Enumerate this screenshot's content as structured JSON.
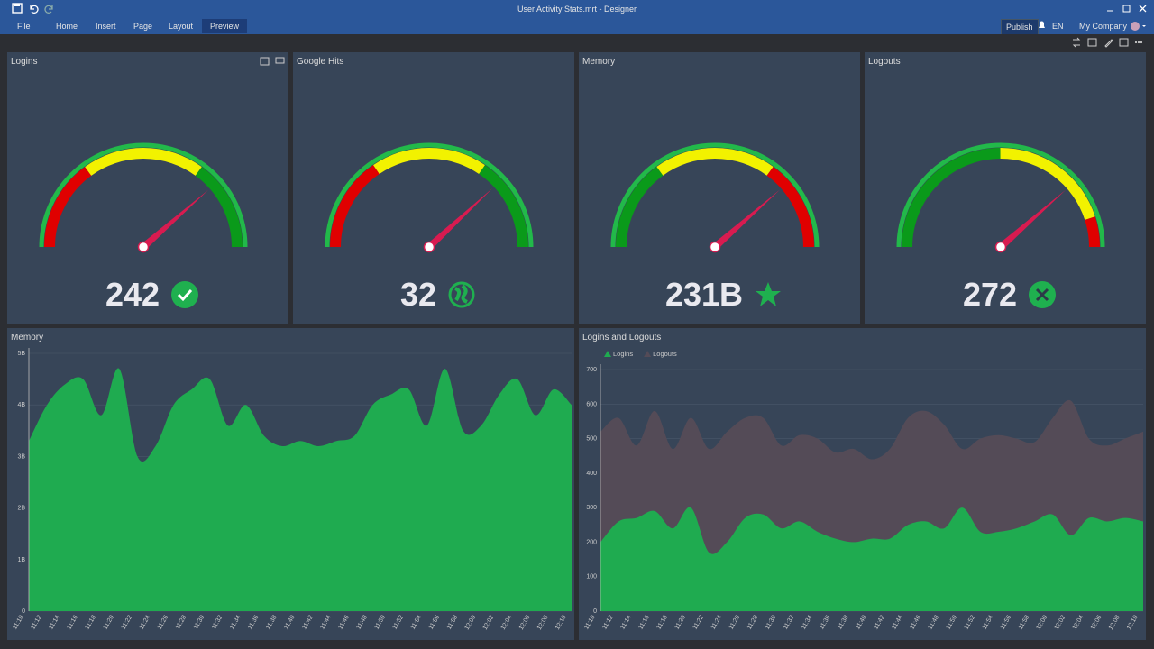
{
  "window": {
    "title": "User Activity Stats.mrt - Designer"
  },
  "menu": {
    "items": [
      "File",
      "Home",
      "Insert",
      "Page",
      "Layout",
      "Preview"
    ],
    "publish": "Publish",
    "language": "EN",
    "account": "My Company"
  },
  "gauges": [
    {
      "title": "Logins",
      "value": 242,
      "min": 0,
      "max": 314,
      "bands": [
        {
          "from": 0,
          "to": 94,
          "color": "#e00000"
        },
        {
          "from": 94,
          "to": 220,
          "color": "#f2f200"
        },
        {
          "from": 220,
          "to": 314,
          "color": "#0a9a1a"
        }
      ]
    },
    {
      "title": "Google Hits",
      "value": 32,
      "min": 0,
      "max": 42,
      "bands": [
        {
          "from": 0,
          "to": 13,
          "color": "#e00000"
        },
        {
          "from": 13,
          "to": 29,
          "color": "#f2f200"
        },
        {
          "from": 29,
          "to": 42,
          "color": "#0a9a1a"
        }
      ]
    },
    {
      "title": "Memory",
      "value": 231,
      "value_label": "231B",
      "min": 0,
      "max": 300,
      "bands": [
        {
          "from": 0,
          "to": 90,
          "color": "#0a9a1a"
        },
        {
          "from": 90,
          "to": 210,
          "color": "#f2f200"
        },
        {
          "from": 210,
          "to": 300,
          "color": "#e00000"
        }
      ]
    },
    {
      "title": "Logouts",
      "value": 272,
      "min": 0,
      "max": 353,
      "bands": [
        {
          "from": 0,
          "to": 176,
          "color": "#0a9a1a"
        },
        {
          "from": 176,
          "to": 318,
          "color": "#f2f200"
        },
        {
          "from": 318,
          "to": 353,
          "color": "#e00000"
        }
      ]
    }
  ],
  "chart_data": [
    {
      "type": "area",
      "title": "Memory",
      "categories": [
        "11:10",
        "11:12",
        "11:14",
        "11:16",
        "11:18",
        "11:20",
        "11:22",
        "11:24",
        "11:26",
        "11:28",
        "11:30",
        "11:32",
        "11:34",
        "11:36",
        "11:38",
        "11:40",
        "11:42",
        "11:44",
        "11:46",
        "11:48",
        "11:50",
        "11:52",
        "11:54",
        "11:56",
        "11:58",
        "12:00",
        "12:02",
        "12:04",
        "12:06",
        "12:08",
        "12:10"
      ],
      "series": [
        {
          "color": "#1fab50",
          "values": [
            3.3,
            4.0,
            4.4,
            4.5,
            3.8,
            4.7,
            3.0,
            3.2,
            4.0,
            4.3,
            4.5,
            3.6,
            4.0,
            3.4,
            3.2,
            3.3,
            3.2,
            3.3,
            3.4,
            4.0,
            4.2,
            4.3,
            3.6,
            4.7,
            3.5,
            3.6,
            4.2,
            4.5,
            3.8,
            4.3,
            4.0
          ]
        }
      ],
      "ylim": [
        0,
        5
      ],
      "yticks": [
        0,
        {
          "value": 1,
          "label": "1B"
        },
        {
          "value": 2,
          "label": "2B"
        },
        {
          "value": 3,
          "label": "3B"
        },
        {
          "value": 4,
          "label": "4B"
        },
        {
          "value": 5,
          "label": "5B"
        }
      ],
      "grid": true
    },
    {
      "type": "area",
      "title": "Logins and Logouts",
      "categories": [
        "11:10",
        "11:12",
        "11:14",
        "11:16",
        "11:18",
        "11:20",
        "11:22",
        "11:24",
        "11:26",
        "11:28",
        "11:30",
        "11:32",
        "11:34",
        "11:36",
        "11:38",
        "11:40",
        "11:42",
        "11:44",
        "11:46",
        "11:48",
        "11:50",
        "11:52",
        "11:54",
        "11:56",
        "11:58",
        "12:00",
        "12:02",
        "12:04",
        "12:06",
        "12:08",
        "12:10"
      ],
      "series": [
        {
          "name": "Logouts",
          "color": "#544b57",
          "values": [
            520,
            560,
            480,
            580,
            470,
            560,
            470,
            520,
            560,
            560,
            480,
            510,
            500,
            460,
            470,
            440,
            470,
            560,
            580,
            540,
            470,
            500,
            510,
            500,
            490,
            560,
            610,
            500,
            480,
            500,
            520
          ]
        },
        {
          "name": "Logins",
          "color": "#1fab50",
          "values": [
            200,
            260,
            270,
            290,
            240,
            300,
            170,
            200,
            270,
            280,
            240,
            260,
            230,
            210,
            200,
            210,
            210,
            250,
            260,
            240,
            300,
            230,
            230,
            240,
            260,
            280,
            220,
            270,
            260,
            270,
            260
          ]
        }
      ],
      "legend_order": [
        "Logins",
        "Logouts"
      ],
      "ylim": [
        0,
        700
      ],
      "yticks": [
        0,
        100,
        200,
        300,
        400,
        500,
        600,
        700
      ],
      "grid": true,
      "legend": "upper left"
    }
  ]
}
